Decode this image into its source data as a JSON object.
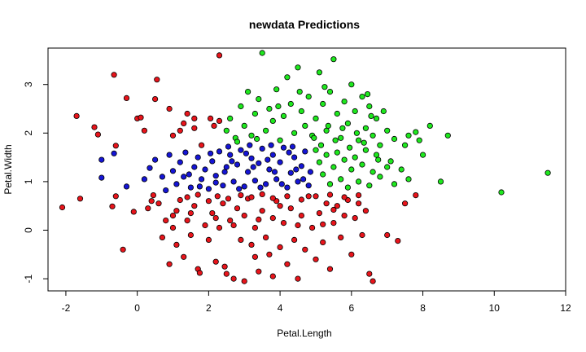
{
  "chart_data": {
    "type": "scatter",
    "title": "newdata Predictions",
    "xlabel": "Petal.Length",
    "ylabel": "Petal.Width",
    "xlim": [
      -2.5,
      12
    ],
    "ylim": [
      -1.25,
      3.75
    ],
    "xticks": [
      "-2",
      "0",
      "2",
      "4",
      "6",
      "8",
      "10",
      "12"
    ],
    "yticks": [
      "-1",
      "0",
      "1",
      "2",
      "3"
    ],
    "grid": false,
    "legend": "none",
    "colors": {
      "red": "#e8141b",
      "blue": "#1515d6",
      "green": "#1ee81e",
      "outline": "#000000"
    },
    "series": [
      {
        "color": "red",
        "points": [
          [
            -2.1,
            0.47
          ],
          [
            -1.6,
            0.65
          ],
          [
            -1.7,
            2.35
          ],
          [
            -1.2,
            2.12
          ],
          [
            -1.1,
            1.97
          ],
          [
            -0.7,
            0.49
          ],
          [
            -0.65,
            3.2
          ],
          [
            -0.6,
            0.7
          ],
          [
            -0.6,
            1.74
          ],
          [
            -0.4,
            -0.4
          ],
          [
            -0.3,
            2.72
          ],
          [
            -0.1,
            0.38
          ],
          [
            0.0,
            2.3
          ],
          [
            0.1,
            2.32
          ],
          [
            0.2,
            2.05
          ],
          [
            0.3,
            0.45
          ],
          [
            0.4,
            0.6
          ],
          [
            0.45,
            0.72
          ],
          [
            0.5,
            2.7
          ],
          [
            0.55,
            3.1
          ],
          [
            0.6,
            0.55
          ],
          [
            0.7,
            -0.15
          ],
          [
            0.8,
            0.2
          ],
          [
            0.9,
            -0.7
          ],
          [
            0.9,
            2.5
          ],
          [
            1.0,
            0.05
          ],
          [
            1.0,
            1.95
          ],
          [
            1.1,
            0.4
          ],
          [
            1.1,
            -0.3
          ],
          [
            1.2,
            2.05
          ],
          [
            1.3,
            -0.55
          ],
          [
            1.4,
            0.2
          ],
          [
            1.4,
            2.4
          ],
          [
            1.5,
            -0.1
          ],
          [
            1.6,
            0.5
          ],
          [
            1.6,
            2.3
          ],
          [
            1.7,
            -0.8
          ],
          [
            1.75,
            -0.88
          ],
          [
            1.8,
            1.75
          ],
          [
            1.9,
            0.1
          ],
          [
            2.0,
            -0.2
          ],
          [
            2.05,
            2.3
          ],
          [
            2.1,
            0.35
          ],
          [
            2.15,
            2.15
          ],
          [
            2.2,
            -0.65
          ],
          [
            2.3,
            3.6
          ],
          [
            2.3,
            0.05
          ],
          [
            2.4,
            0.55
          ],
          [
            2.45,
            -0.75
          ],
          [
            2.5,
            -0.9
          ],
          [
            2.6,
            0.2
          ],
          [
            2.7,
            -1.0
          ],
          [
            2.8,
            0.45
          ],
          [
            2.9,
            -0.2
          ],
          [
            3.0,
            0.3
          ],
          [
            3.0,
            -1.05
          ],
          [
            3.1,
            0.65
          ],
          [
            3.2,
            -0.3
          ],
          [
            3.3,
            0.05
          ],
          [
            3.3,
            -0.55
          ],
          [
            3.4,
            -0.85
          ],
          [
            3.5,
            0.4
          ],
          [
            3.6,
            -0.15
          ],
          [
            3.7,
            -0.5
          ],
          [
            3.8,
            0.25
          ],
          [
            3.8,
            -0.95
          ],
          [
            3.9,
            0.6
          ],
          [
            4.0,
            -0.35
          ],
          [
            4.1,
            0.15
          ],
          [
            4.2,
            -0.7
          ],
          [
            4.3,
            0.45
          ],
          [
            4.4,
            -0.2
          ],
          [
            4.5,
            -1.0
          ],
          [
            4.6,
            0.3
          ],
          [
            4.7,
            -0.4
          ],
          [
            4.8,
            0.7
          ],
          [
            4.9,
            0.05
          ],
          [
            5.0,
            -0.6
          ],
          [
            5.1,
            0.35
          ],
          [
            5.2,
            -0.25
          ],
          [
            5.3,
            0.55
          ],
          [
            5.4,
            -0.8
          ],
          [
            5.5,
            0.15
          ],
          [
            5.6,
            0.5
          ],
          [
            5.7,
            -0.15
          ],
          [
            5.8,
            0.3
          ],
          [
            5.9,
            0.62
          ],
          [
            6.0,
            -0.5
          ],
          [
            6.1,
            0.25
          ],
          [
            6.2,
            0.55
          ],
          [
            6.3,
            -0.1
          ],
          [
            6.4,
            0.4
          ],
          [
            6.5,
            -0.9
          ],
          [
            6.6,
            -1.05
          ],
          [
            7.0,
            -0.1
          ],
          [
            7.3,
            -0.22
          ],
          [
            7.5,
            0.55
          ],
          [
            7.8,
            0.72
          ],
          [
            1.2,
            0.62
          ],
          [
            1.4,
            0.68
          ],
          [
            1.7,
            0.73
          ],
          [
            2.0,
            0.6
          ],
          [
            2.25,
            0.7
          ],
          [
            2.55,
            0.65
          ],
          [
            2.9,
            0.72
          ],
          [
            3.2,
            0.68
          ],
          [
            3.5,
            0.74
          ],
          [
            3.8,
            0.66
          ],
          [
            4.2,
            0.7
          ],
          [
            4.6,
            0.63
          ],
          [
            5.0,
            0.7
          ],
          [
            5.4,
            0.73
          ],
          [
            5.8,
            0.68
          ],
          [
            6.2,
            0.72
          ],
          [
            1.0,
            0.3
          ],
          [
            1.5,
            0.35
          ],
          [
            2.2,
            0.25
          ],
          [
            2.7,
            0.1
          ],
          [
            3.4,
            0.22
          ],
          [
            4.0,
            0.5
          ],
          [
            4.5,
            0.1
          ],
          [
            5.2,
            0.12
          ],
          [
            5.5,
            0.42
          ],
          [
            1.3,
            2.2
          ],
          [
            1.6,
            2.1
          ],
          [
            2.3,
            2.25
          ]
        ]
      },
      {
        "color": "blue",
        "points": [
          [
            -1.0,
            1.08
          ],
          [
            -1.0,
            1.45
          ],
          [
            -0.65,
            1.58
          ],
          [
            -0.3,
            0.9
          ],
          [
            0.2,
            1.05
          ],
          [
            0.35,
            1.28
          ],
          [
            0.5,
            1.45
          ],
          [
            0.7,
            1.1
          ],
          [
            0.8,
            0.82
          ],
          [
            0.9,
            1.55
          ],
          [
            1.0,
            1.22
          ],
          [
            1.1,
            0.95
          ],
          [
            1.2,
            1.4
          ],
          [
            1.3,
            1.1
          ],
          [
            1.35,
            1.6
          ],
          [
            1.5,
            0.88
          ],
          [
            1.6,
            1.3
          ],
          [
            1.7,
            1.5
          ],
          [
            1.8,
            1.05
          ],
          [
            1.9,
            1.25
          ],
          [
            2.0,
            0.85
          ],
          [
            2.1,
            1.42
          ],
          [
            2.2,
            1.12
          ],
          [
            2.3,
            1.62
          ],
          [
            2.4,
            0.92
          ],
          [
            2.5,
            1.3
          ],
          [
            2.6,
            1.55
          ],
          [
            2.7,
            1.0
          ],
          [
            2.8,
            1.35
          ],
          [
            2.9,
            1.65
          ],
          [
            3.0,
            0.9
          ],
          [
            3.1,
            1.2
          ],
          [
            3.2,
            1.48
          ],
          [
            3.3,
            1.02
          ],
          [
            3.4,
            1.38
          ],
          [
            3.5,
            1.68
          ],
          [
            3.6,
            0.95
          ],
          [
            3.7,
            1.25
          ],
          [
            3.8,
            1.55
          ],
          [
            3.9,
            1.05
          ],
          [
            4.0,
            1.4
          ],
          [
            4.1,
            1.7
          ],
          [
            4.2,
            0.88
          ],
          [
            4.3,
            1.18
          ],
          [
            4.4,
            1.5
          ],
          [
            4.5,
            1.0
          ],
          [
            4.6,
            1.32
          ],
          [
            4.7,
            1.62
          ],
          [
            4.8,
            0.92
          ],
          [
            4.85,
            1.2
          ],
          [
            2.2,
            0.98
          ],
          [
            2.45,
            1.2
          ],
          [
            2.65,
            1.42
          ],
          [
            2.85,
            0.85
          ],
          [
            3.05,
            1.58
          ],
          [
            3.25,
            1.3
          ],
          [
            3.45,
            0.88
          ],
          [
            3.65,
            1.45
          ],
          [
            3.85,
            1.2
          ],
          [
            4.05,
            0.95
          ],
          [
            4.25,
            1.6
          ],
          [
            4.45,
            1.25
          ],
          [
            4.65,
            1.05
          ],
          [
            2.55,
            1.72
          ],
          [
            3.15,
            1.75
          ],
          [
            3.75,
            1.75
          ],
          [
            4.35,
            1.72
          ],
          [
            1.45,
            1.15
          ],
          [
            1.75,
            0.9
          ],
          [
            2.05,
            1.58
          ]
        ]
      },
      {
        "color": "green",
        "points": [
          [
            2.5,
            2.05
          ],
          [
            2.6,
            2.3
          ],
          [
            2.75,
            1.9
          ],
          [
            2.9,
            2.55
          ],
          [
            3.0,
            2.15
          ],
          [
            3.1,
            2.85
          ],
          [
            3.2,
            1.95
          ],
          [
            3.3,
            2.4
          ],
          [
            3.4,
            2.7
          ],
          [
            3.5,
            3.65
          ],
          [
            3.6,
            2.05
          ],
          [
            3.7,
            2.5
          ],
          [
            3.8,
            2.25
          ],
          [
            3.9,
            2.9
          ],
          [
            4.0,
            1.85
          ],
          [
            4.1,
            2.35
          ],
          [
            4.2,
            3.15
          ],
          [
            4.3,
            2.6
          ],
          [
            4.4,
            2.0
          ],
          [
            4.5,
            3.35
          ],
          [
            4.6,
            2.45
          ],
          [
            4.7,
            2.15
          ],
          [
            4.8,
            2.75
          ],
          [
            4.9,
            1.95
          ],
          [
            5.0,
            2.3
          ],
          [
            5.1,
            3.25
          ],
          [
            5.2,
            2.6
          ],
          [
            5.3,
            2.05
          ],
          [
            5.4,
            2.85
          ],
          [
            5.5,
            3.52
          ],
          [
            5.6,
            2.4
          ],
          [
            5.7,
            1.9
          ],
          [
            5.8,
            2.65
          ],
          [
            5.9,
            2.2
          ],
          [
            6.0,
            3.0
          ],
          [
            6.1,
            2.45
          ],
          [
            6.2,
            1.85
          ],
          [
            6.3,
            2.75
          ],
          [
            6.4,
            2.1
          ],
          [
            6.5,
            2.55
          ],
          [
            6.6,
            1.95
          ],
          [
            6.7,
            2.3
          ],
          [
            6.8,
            1.75
          ],
          [
            7.0,
            2.05
          ],
          [
            7.1,
            1.42
          ],
          [
            7.2,
            1.88
          ],
          [
            7.5,
            1.75
          ],
          [
            7.6,
            1.95
          ],
          [
            7.8,
            2.02
          ],
          [
            8.0,
            1.55
          ],
          [
            8.2,
            2.15
          ],
          [
            8.5,
            1.0
          ],
          [
            8.7,
            1.95
          ],
          [
            10.2,
            0.78
          ],
          [
            11.5,
            1.18
          ],
          [
            5.0,
            1.65
          ],
          [
            5.1,
            1.4
          ],
          [
            5.2,
            1.15
          ],
          [
            5.3,
            1.55
          ],
          [
            5.4,
            0.95
          ],
          [
            5.5,
            1.3
          ],
          [
            5.6,
            1.6
          ],
          [
            5.7,
            1.05
          ],
          [
            5.8,
            1.45
          ],
          [
            5.9,
            0.88
          ],
          [
            6.0,
            1.25
          ],
          [
            6.1,
            1.5
          ],
          [
            6.2,
            1.0
          ],
          [
            6.3,
            1.35
          ],
          [
            6.4,
            1.65
          ],
          [
            6.5,
            0.92
          ],
          [
            6.6,
            1.2
          ],
          [
            6.7,
            1.55
          ],
          [
            6.8,
            1.1
          ],
          [
            7.0,
            1.3
          ],
          [
            7.2,
            0.95
          ],
          [
            7.4,
            1.25
          ],
          [
            7.6,
            1.05
          ],
          [
            4.95,
            1.9
          ],
          [
            5.15,
            1.75
          ],
          [
            5.35,
            2.15
          ],
          [
            5.55,
            1.85
          ],
          [
            5.75,
            2.1
          ],
          [
            5.95,
            1.7
          ],
          [
            6.15,
            2.0
          ],
          [
            6.35,
            1.8
          ],
          [
            6.55,
            2.35
          ],
          [
            6.75,
            1.45
          ],
          [
            2.8,
            1.82
          ],
          [
            3.35,
            1.88
          ],
          [
            3.95,
            2.55
          ],
          [
            4.55,
            2.85
          ],
          [
            5.25,
            2.95
          ],
          [
            6.45,
            2.8
          ],
          [
            6.9,
            2.45
          ],
          [
            7.9,
            1.85
          ]
        ]
      }
    ]
  }
}
